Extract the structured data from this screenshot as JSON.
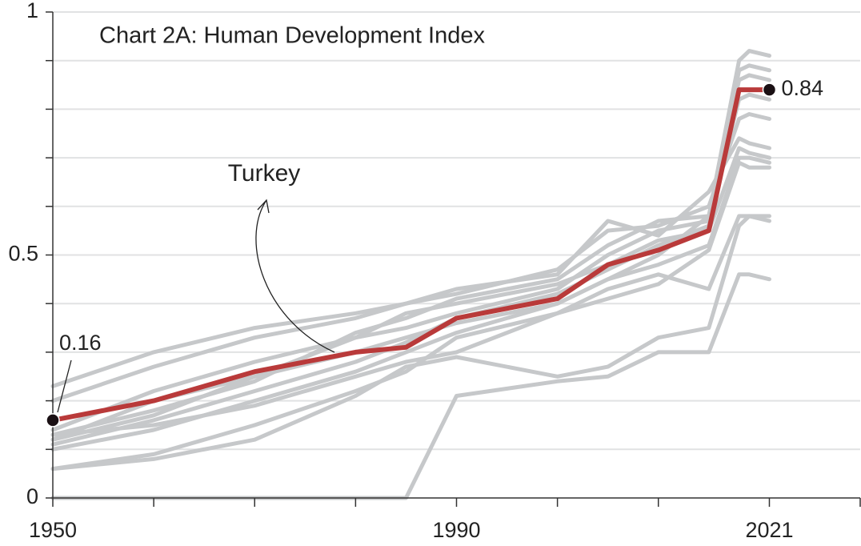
{
  "chart_data": {
    "type": "line",
    "title": "Chart 2A: Human Development Index",
    "x": [
      1950,
      1960,
      1970,
      1980,
      1985,
      1990,
      2000,
      2005,
      2010,
      2015,
      2018,
      2019,
      2021
    ],
    "series": [
      {
        "color": "#c6c8ca",
        "values": [
          0.12,
          0.2,
          0.25,
          0.3,
          0.33,
          0.36,
          0.4,
          0.45,
          0.5,
          0.58,
          0.9,
          0.92,
          0.91
        ]
      },
      {
        "color": "#c6c8ca",
        "values": [
          0.11,
          0.16,
          0.22,
          0.28,
          0.32,
          0.37,
          0.42,
          0.47,
          0.52,
          0.56,
          0.88,
          0.89,
          0.88
        ]
      },
      {
        "color": "#c6c8ca",
        "values": [
          0.14,
          0.22,
          0.28,
          0.33,
          0.35,
          0.38,
          0.43,
          0.5,
          0.55,
          0.57,
          0.86,
          0.87,
          0.86
        ]
      },
      {
        "color": "#c6c8ca",
        "values": [
          0.13,
          0.18,
          0.24,
          0.34,
          0.37,
          0.41,
          0.45,
          0.52,
          0.57,
          0.58,
          0.82,
          0.83,
          0.82
        ]
      },
      {
        "color": "#c6c8ca",
        "values": [
          0.23,
          0.3,
          0.35,
          0.38,
          0.4,
          0.42,
          0.47,
          0.55,
          0.56,
          0.6,
          0.78,
          0.79,
          0.78
        ]
      },
      {
        "color": "#c6c8ca",
        "values": [
          0.2,
          0.27,
          0.33,
          0.37,
          0.4,
          0.43,
          0.46,
          0.57,
          0.54,
          0.63,
          0.74,
          0.73,
          0.72
        ]
      },
      {
        "color": "#c6c8ca",
        "values": [
          0.12,
          0.17,
          0.25,
          0.33,
          0.38,
          0.4,
          0.44,
          0.48,
          0.53,
          0.55,
          0.72,
          0.71,
          0.7
        ]
      },
      {
        "color": "#c6c8ca",
        "values": [
          0.1,
          0.14,
          0.2,
          0.26,
          0.3,
          0.34,
          0.4,
          0.45,
          0.48,
          0.52,
          0.7,
          0.7,
          0.69
        ]
      },
      {
        "color": "#c6c8ca",
        "values": [
          0.13,
          0.15,
          0.19,
          0.25,
          0.28,
          0.3,
          0.38,
          0.43,
          0.46,
          0.43,
          0.58,
          0.58,
          0.58
        ]
      },
      {
        "color": "#c6c8ca",
        "values": [
          0.06,
          0.09,
          0.15,
          0.22,
          0.26,
          0.33,
          0.38,
          0.41,
          0.44,
          0.51,
          0.69,
          0.68,
          0.68
        ]
      },
      {
        "color": "#c6c8ca",
        "values": [
          0.06,
          0.08,
          0.12,
          0.21,
          0.27,
          0.29,
          0.25,
          0.27,
          0.33,
          0.35,
          0.56,
          0.58,
          0.57
        ]
      },
      {
        "color": "#c6c8ca",
        "values": [
          0,
          0,
          0,
          0,
          0,
          0.21,
          0.24,
          0.25,
          0.3,
          0.3,
          0.46,
          0.46,
          0.45
        ]
      },
      {
        "name": "Turkey",
        "color": "#b93a3a",
        "values": [
          0.16,
          0.2,
          0.26,
          0.3,
          0.31,
          0.37,
          0.41,
          0.48,
          0.51,
          0.55,
          0.84,
          0.84,
          0.84
        ]
      }
    ],
    "xlim": [
      1950,
      2030
    ],
    "xticks": [
      1950,
      {
        "value": 1960,
        "label": null
      },
      {
        "value": 1970,
        "label": null
      },
      {
        "value": 1980,
        "label": null
      },
      1990,
      {
        "value": 2000,
        "label": null
      },
      {
        "value": 2010,
        "label": null
      },
      2021,
      {
        "value": 2030,
        "label": null
      }
    ],
    "ylim": [
      0,
      1
    ],
    "yticks": [
      0,
      {
        "value": 0.1,
        "label": null
      },
      {
        "value": 0.2,
        "label": null
      },
      {
        "value": 0.3,
        "label": null
      },
      {
        "value": 0.4,
        "label": null
      },
      0.5,
      {
        "value": 0.6,
        "label": null
      },
      {
        "value": 0.7,
        "label": null
      },
      {
        "value": 0.8,
        "label": null
      },
      {
        "value": 0.9,
        "label": null
      },
      1
    ],
    "grid": true
  }
}
